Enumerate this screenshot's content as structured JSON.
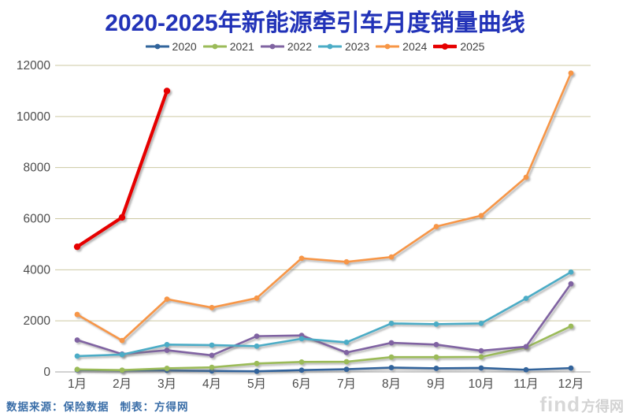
{
  "title": "2020-2025年新能源牵引车月度销量曲线",
  "footer": {
    "source": "数据来源：保险数据",
    "maker": "制表：方得网"
  },
  "watermark": {
    "find": "find",
    "brand": "方得网"
  },
  "colors": {
    "title": "#2233b8",
    "footer_text": "#3a6ea8",
    "gridline": "#cdc9a3",
    "zero_axis": "#a6a6a6",
    "tick_label": "#4d4d4d",
    "watermark": "#d7d7d7"
  },
  "chart_data": {
    "type": "line",
    "title": "2020-2025年新能源牵引车月度销量曲线",
    "categories": [
      "1月",
      "2月",
      "3月",
      "4月",
      "5月",
      "6月",
      "7月",
      "8月",
      "9月",
      "10月",
      "11月",
      "12月"
    ],
    "series": [
      {
        "name": "2020",
        "color": "#31649b",
        "values": [
          80,
          60,
          60,
          40,
          25,
          70,
          105,
          170,
          140,
          155,
          85,
          150
        ]
      },
      {
        "name": "2021",
        "color": "#9bbb59",
        "values": [
          100,
          70,
          140,
          180,
          330,
          390,
          400,
          580,
          580,
          590,
          960,
          1790
        ]
      },
      {
        "name": "2022",
        "color": "#8064a2",
        "values": [
          1250,
          700,
          850,
          650,
          1400,
          1430,
          760,
          1140,
          1070,
          830,
          990,
          3450
        ]
      },
      {
        "name": "2023",
        "color": "#4bacc6",
        "values": [
          620,
          680,
          1070,
          1050,
          1010,
          1300,
          1160,
          1900,
          1870,
          1900,
          2880,
          3910
        ]
      },
      {
        "name": "2024",
        "color": "#f79646",
        "values": [
          2250,
          1230,
          2850,
          2520,
          2890,
          4450,
          4310,
          4500,
          5690,
          6120,
          7620,
          11700
        ]
      },
      {
        "name": "2025",
        "color": "#e60000",
        "values": [
          4900,
          6050,
          11000,
          null,
          null,
          null,
          null,
          null,
          null,
          null,
          null,
          null
        ],
        "emphasis": true
      }
    ],
    "xlabel": "",
    "ylabel": "",
    "ylim": [
      0,
      12000
    ],
    "ytick_step": 2000,
    "grid": "horizontal",
    "legend_position": "top"
  }
}
